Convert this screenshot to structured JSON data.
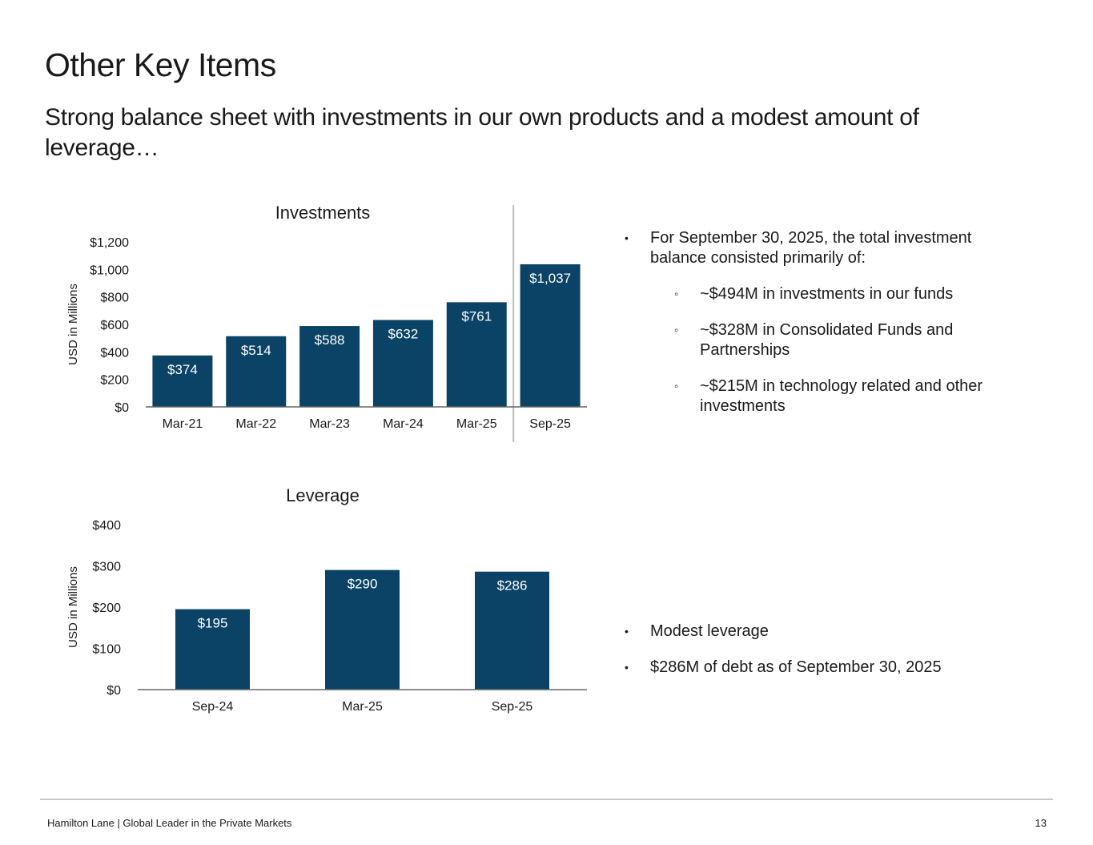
{
  "title": "Other Key Items",
  "subtitle": "Strong balance sheet with investments in our own products and a modest amount of leverage…",
  "colors": {
    "bar": "#0a4366",
    "axis": "#666666",
    "divider": "#bdbdbd"
  },
  "chart_data": [
    {
      "type": "bar",
      "title": "Investments",
      "ylabel": "USD in Millions",
      "categories": [
        "Mar-21",
        "Mar-22",
        "Mar-23",
        "Mar-24",
        "Mar-25",
        "Sep-25"
      ],
      "values": [
        374,
        514,
        588,
        632,
        761,
        1037
      ],
      "value_labels": [
        "$374",
        "$514",
        "$588",
        "$632",
        "$761",
        "$1,037"
      ],
      "ylim": [
        0,
        1200
      ],
      "yticks": [
        0,
        200,
        400,
        600,
        800,
        1000,
        1200
      ],
      "ytick_labels": [
        "$0",
        "$200",
        "$400",
        "$600",
        "$800",
        "$1,000",
        "$1,200"
      ],
      "grid": false,
      "divider_before": "Sep-25"
    },
    {
      "type": "bar",
      "title": "Leverage",
      "ylabel": "USD in Millions",
      "categories": [
        "Sep-24",
        "Mar-25",
        "Sep-25"
      ],
      "values": [
        195,
        290,
        286
      ],
      "value_labels": [
        "$195",
        "$290",
        "$286"
      ],
      "ylim": [
        0,
        400
      ],
      "yticks": [
        0,
        100,
        200,
        300,
        400
      ],
      "ytick_labels": [
        "$0",
        "$100",
        "$200",
        "$300",
        "$400"
      ],
      "grid": false
    }
  ],
  "investment_notes": {
    "main": "For September 30, 2025, the total investment balance consisted primarily of:",
    "items": [
      "~$494M in investments in our funds",
      "~$328M in Consolidated Funds and Partnerships",
      "~$215M in technology related and other investments"
    ]
  },
  "leverage_notes": [
    "Modest leverage",
    "$286M of debt as of September 30, 2025"
  ],
  "footer": {
    "text": "Hamilton Lane  |  Global Leader in the Private Markets",
    "page_number": "13"
  }
}
